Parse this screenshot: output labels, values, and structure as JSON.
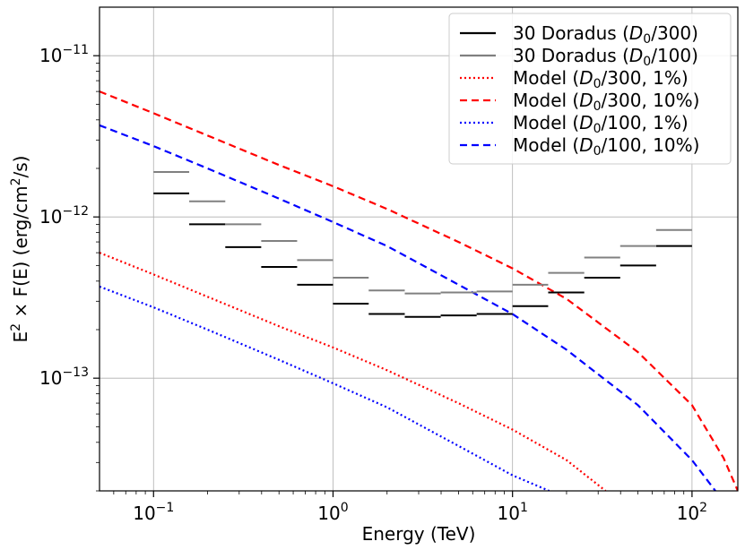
{
  "chart_data": {
    "type": "line",
    "title": "",
    "xlabel": "Energy (TeV)",
    "ylabel": "E² × F(E) (erg/cm²/s)",
    "xscale": "log",
    "yscale": "log",
    "xlim": [
      0.05,
      180
    ],
    "ylim": [
      2e-14,
      2e-11
    ],
    "grid": true,
    "legend_position": "top-right",
    "x_ticks": [
      {
        "value": 0.1,
        "base": "10",
        "exp": "−1"
      },
      {
        "value": 1,
        "base": "10",
        "exp": "0"
      },
      {
        "value": 10,
        "base": "10",
        "exp": "1"
      },
      {
        "value": 100,
        "base": "10",
        "exp": "2"
      }
    ],
    "y_ticks": [
      {
        "value": 1e-13,
        "base": "10",
        "exp": "−13"
      },
      {
        "value": 1e-12,
        "base": "10",
        "exp": "−12"
      },
      {
        "value": 1e-11,
        "base": "10",
        "exp": "−11"
      }
    ],
    "step_series": [
      {
        "name": "30 Doradus (D0/300)",
        "legend": {
          "pre": "30 Doradus (",
          "var": "D",
          "sub": "0",
          "post": "/300)"
        },
        "color": "#000000",
        "bins": [
          {
            "x0": 0.1,
            "x1": 0.158,
            "y": 1.4e-12
          },
          {
            "x0": 0.158,
            "x1": 0.251,
            "y": 9e-13
          },
          {
            "x0": 0.251,
            "x1": 0.398,
            "y": 6.5e-13
          },
          {
            "x0": 0.398,
            "x1": 0.631,
            "y": 4.9e-13
          },
          {
            "x0": 0.631,
            "x1": 1.0,
            "y": 3.8e-13
          },
          {
            "x0": 1.0,
            "x1": 1.58,
            "y": 2.9e-13
          },
          {
            "x0": 1.58,
            "x1": 2.51,
            "y": 2.5e-13
          },
          {
            "x0": 2.51,
            "x1": 3.98,
            "y": 2.4e-13
          },
          {
            "x0": 3.98,
            "x1": 6.31,
            "y": 2.45e-13
          },
          {
            "x0": 6.31,
            "x1": 10.0,
            "y": 2.5e-13
          },
          {
            "x0": 10.0,
            "x1": 15.8,
            "y": 2.8e-13
          },
          {
            "x0": 15.8,
            "x1": 25.1,
            "y": 3.4e-13
          },
          {
            "x0": 25.1,
            "x1": 39.8,
            "y": 4.2e-13
          },
          {
            "x0": 39.8,
            "x1": 63.1,
            "y": 5e-13
          },
          {
            "x0": 63.1,
            "x1": 100.0,
            "y": 6.6e-13
          }
        ]
      },
      {
        "name": "30 Doradus (D0/100)",
        "legend": {
          "pre": "30 Doradus (",
          "var": "D",
          "sub": "0",
          "post": "/100)"
        },
        "color": "#808080",
        "bins": [
          {
            "x0": 0.1,
            "x1": 0.158,
            "y": 1.9e-12
          },
          {
            "x0": 0.158,
            "x1": 0.251,
            "y": 1.25e-12
          },
          {
            "x0": 0.251,
            "x1": 0.398,
            "y": 9e-13
          },
          {
            "x0": 0.398,
            "x1": 0.631,
            "y": 7.1e-13
          },
          {
            "x0": 0.631,
            "x1": 1.0,
            "y": 5.4e-13
          },
          {
            "x0": 1.0,
            "x1": 1.58,
            "y": 4.2e-13
          },
          {
            "x0": 1.58,
            "x1": 2.51,
            "y": 3.5e-13
          },
          {
            "x0": 2.51,
            "x1": 3.98,
            "y": 3.35e-13
          },
          {
            "x0": 3.98,
            "x1": 6.31,
            "y": 3.4e-13
          },
          {
            "x0": 6.31,
            "x1": 10.0,
            "y": 3.45e-13
          },
          {
            "x0": 10.0,
            "x1": 15.8,
            "y": 3.8e-13
          },
          {
            "x0": 15.8,
            "x1": 25.1,
            "y": 4.5e-13
          },
          {
            "x0": 25.1,
            "x1": 39.8,
            "y": 5.6e-13
          },
          {
            "x0": 39.8,
            "x1": 63.1,
            "y": 6.6e-13
          },
          {
            "x0": 63.1,
            "x1": 100.0,
            "y": 8.3e-13
          }
        ]
      }
    ],
    "series": [
      {
        "name": "Model (D0/300, 1%)",
        "legend": {
          "pre": "Model (",
          "var": "D",
          "sub": "0",
          "post": "/300, 1%)"
        },
        "color": "#ff0000",
        "dash": "dotted",
        "x": [
          0.05,
          0.1,
          0.2,
          0.5,
          1,
          2,
          5,
          10,
          20,
          33
        ],
        "y": [
          6e-13,
          4.4e-13,
          3.2e-13,
          2.1e-13,
          1.55e-13,
          1.12e-13,
          7e-14,
          4.8e-14,
          3.1e-14,
          2e-14
        ]
      },
      {
        "name": "Model (D0/300, 10%)",
        "legend": {
          "pre": "Model (",
          "var": "D",
          "sub": "0",
          "post": "/300, 10%)"
        },
        "color": "#ff0000",
        "dash": "dashed",
        "x": [
          0.05,
          0.1,
          0.2,
          0.5,
          1,
          2,
          5,
          10,
          20,
          50,
          100,
          150,
          180
        ],
        "y": [
          6e-12,
          4.4e-12,
          3.2e-12,
          2.1e-12,
          1.55e-12,
          1.12e-12,
          7e-13,
          4.8e-13,
          3.1e-13,
          1.45e-13,
          6.8e-14,
          3.2e-14,
          2e-14
        ]
      },
      {
        "name": "Model (D0/100, 1%)",
        "legend": {
          "pre": "Model (",
          "var": "D",
          "sub": "0",
          "post": "/100, 1%)"
        },
        "color": "#0000ff",
        "dash": "dotted",
        "x": [
          0.05,
          0.1,
          0.2,
          0.5,
          1,
          2,
          5,
          10,
          16
        ],
        "y": [
          3.7e-13,
          2.75e-13,
          2e-13,
          1.3e-13,
          9.3e-14,
          6.6e-14,
          3.8e-14,
          2.5e-14,
          2e-14
        ]
      },
      {
        "name": "Model (D0/100, 10%)",
        "legend": {
          "pre": "Model (",
          "var": "D",
          "sub": "0",
          "post": "/100, 10%)"
        },
        "color": "#0000ff",
        "dash": "dashed",
        "x": [
          0.05,
          0.1,
          0.2,
          0.5,
          1,
          2,
          5,
          10,
          20,
          50,
          100,
          135
        ],
        "y": [
          3.7e-12,
          2.75e-12,
          2e-12,
          1.3e-12,
          9.3e-13,
          6.6e-13,
          3.8e-13,
          2.5e-13,
          1.5e-13,
          6.8e-14,
          3.1e-14,
          2e-14
        ]
      }
    ]
  }
}
